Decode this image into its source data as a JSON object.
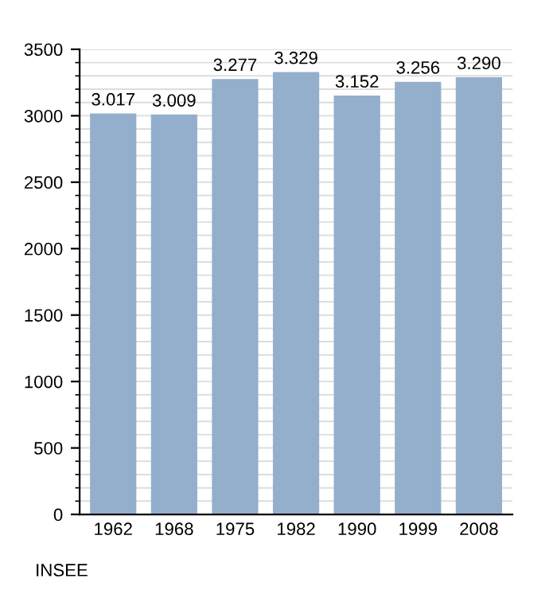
{
  "chart_data": {
    "type": "bar",
    "categories": [
      "1962",
      "1968",
      "1975",
      "1982",
      "1990",
      "1999",
      "2008"
    ],
    "values": [
      3017,
      3009,
      3277,
      3329,
      3152,
      3256,
      3290
    ],
    "value_labels": [
      "3.017",
      "3.009",
      "3.277",
      "3.329",
      "3.152",
      "3.256",
      "3.290"
    ],
    "color": "#94afcb",
    "ylim": [
      0,
      3500
    ],
    "yticks": [
      0,
      500,
      1000,
      1500,
      2000,
      2500,
      3000,
      3500
    ],
    "grid": "y",
    "annotations": [
      "INSEE"
    ]
  }
}
